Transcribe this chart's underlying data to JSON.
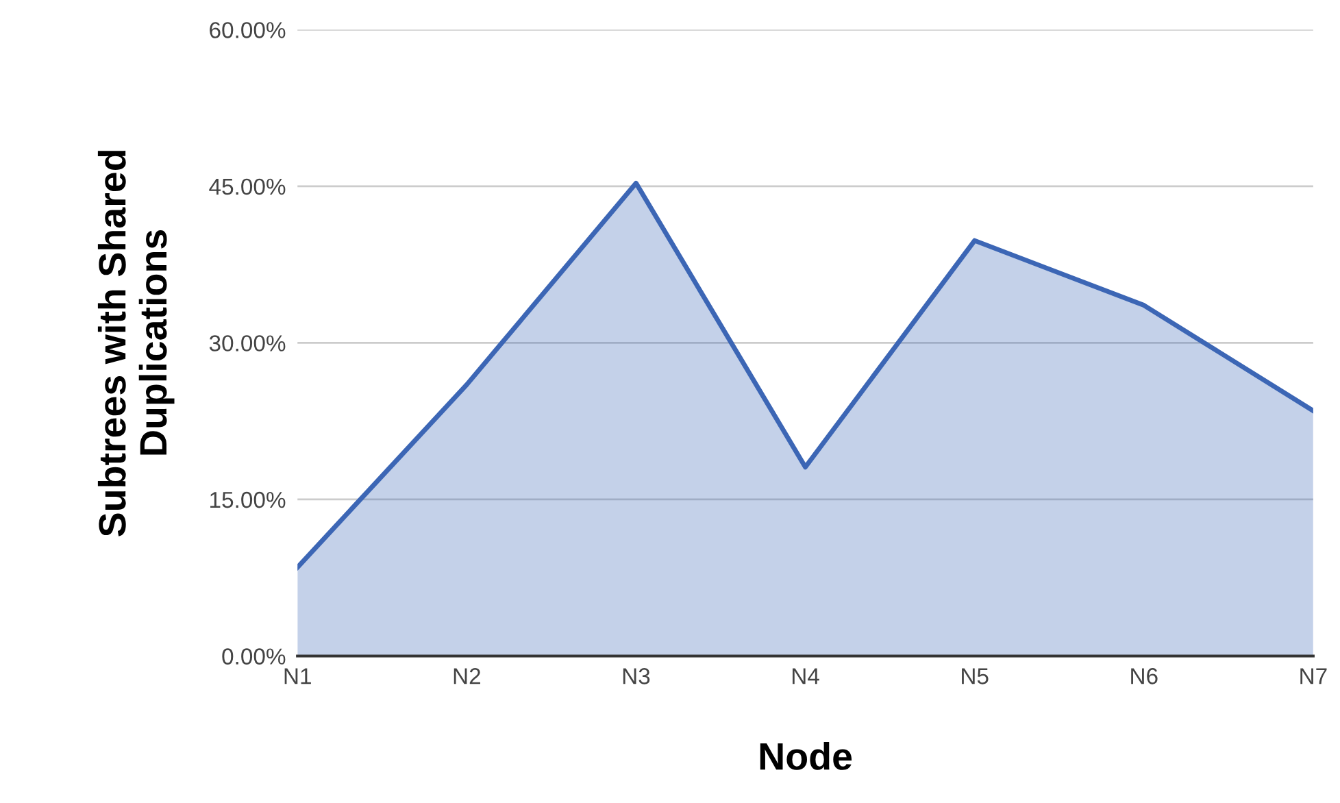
{
  "chart_data": {
    "type": "area",
    "xlabel": "Node",
    "ylabel": "Subtrees with Shared\nDuplications",
    "categories": [
      "N1",
      "N2",
      "N3",
      "N4",
      "N5",
      "N6",
      "N7"
    ],
    "series": [
      {
        "color": "#3c66b5",
        "values": [
          8.5,
          26.0,
          45.3,
          18.1,
          39.8,
          33.6,
          23.5
        ]
      }
    ],
    "ylim": [
      0,
      60
    ],
    "yticks": [
      {
        "value": 0,
        "label": "0.00%"
      },
      {
        "value": 15,
        "label": "15.00%"
      },
      {
        "value": 30,
        "label": "30.00%"
      },
      {
        "value": 45,
        "label": "45.00%"
      },
      {
        "value": 60,
        "label": "60.00%"
      }
    ],
    "grid": "y",
    "legend": false
  }
}
